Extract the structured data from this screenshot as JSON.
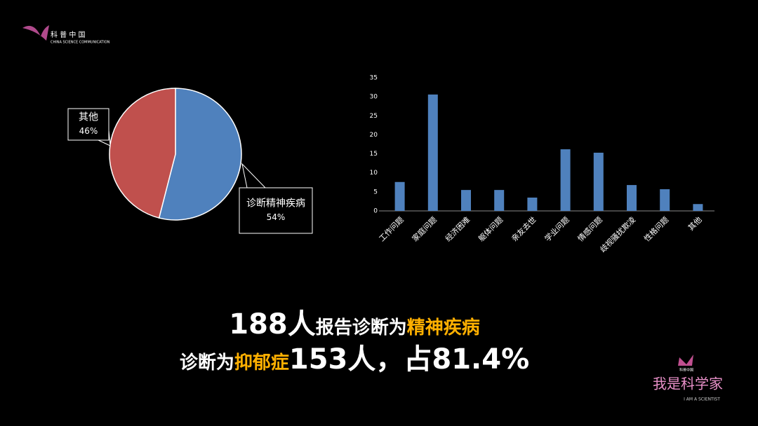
{
  "logo": {
    "name": "科 普 中 国",
    "subtitle": "CHINA SCIENCE COMMUNICATION"
  },
  "chart_data": [
    {
      "type": "pie",
      "categories": [
        "诊断精神疾病",
        "其他"
      ],
      "values": [
        54,
        46
      ],
      "value_labels": [
        "54%",
        "46%"
      ],
      "colors": [
        "#4f81bd",
        "#c0504d"
      ]
    },
    {
      "type": "bar",
      "categories": [
        "工作问题",
        "家庭问题",
        "经济困难",
        "躯体问题",
        "亲友去世",
        "学业问题",
        "情感问题",
        "歧视骚扰欺凌",
        "性格问题",
        "其他"
      ],
      "values": [
        7.6,
        30.6,
        5.5,
        5.5,
        3.5,
        16.2,
        15.3,
        6.8,
        5.7,
        1.8
      ],
      "color": "#4f81bd",
      "ylim": [
        0,
        35
      ],
      "yticks": [
        0,
        5,
        10,
        15,
        20,
        25,
        30,
        35
      ],
      "grid": false
    }
  ],
  "caption": {
    "line1": [
      "188",
      "人",
      "报告诊断为",
      "精神疾病"
    ],
    "line2": [
      "诊断为",
      "抑郁症",
      "153人",
      "，占81.4%"
    ]
  },
  "badge": {
    "logo": "科普中国",
    "title": "我是科学家",
    "subtitle": "I AM A SCIENTIST"
  }
}
